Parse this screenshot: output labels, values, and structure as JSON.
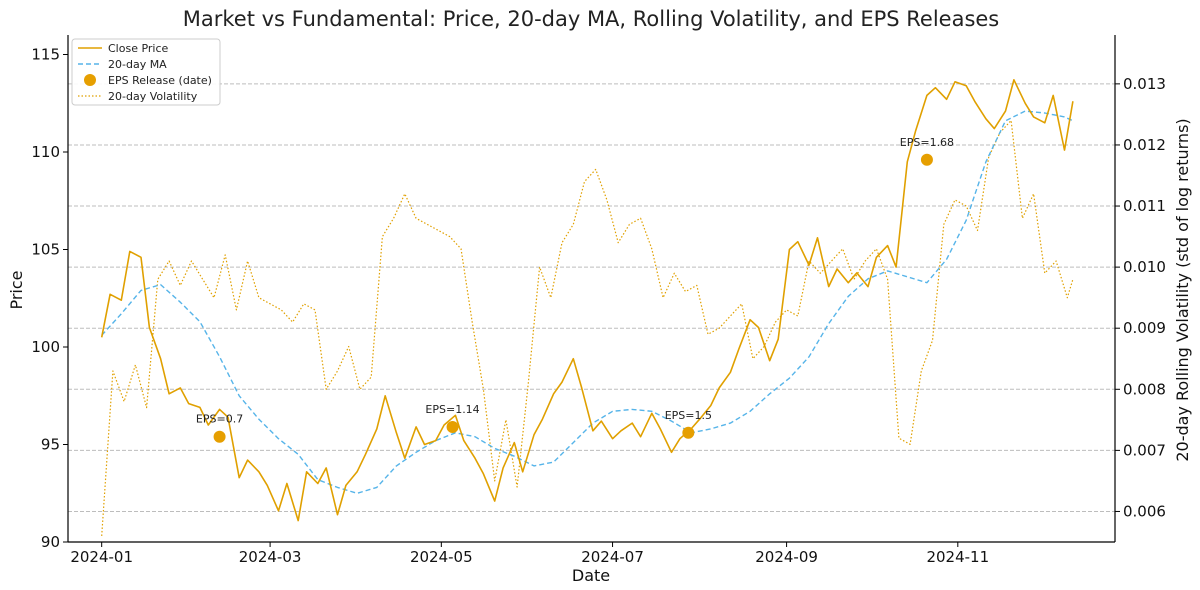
{
  "chart_data": {
    "type": "line",
    "title": "Market vs Fundamental: Price, 20-day MA, Rolling Volatility, and EPS Releases",
    "xlabel": "Date",
    "ylabel": "Price",
    "ylabel_right": "20-day Rolling Volatility (std of log returns)",
    "xlim": [
      "2023-12-20",
      "2024-12-27"
    ],
    "ylim": [
      90,
      116
    ],
    "ylim_right": [
      0.0055,
      0.0138
    ],
    "x_ticks": [
      "2024-01-01",
      "2024-03-01",
      "2024-05-01",
      "2024-07-01",
      "2024-09-01",
      "2024-11-01"
    ],
    "x_tick_labels": [
      "2024-01",
      "2024-03",
      "2024-05",
      "2024-07",
      "2024-09",
      "2024-11"
    ],
    "y_ticks": [
      90,
      95,
      100,
      105,
      110,
      115
    ],
    "y_ticks_right": [
      0.006,
      0.007,
      0.008,
      0.009,
      0.01,
      0.011,
      0.012,
      0.013
    ],
    "grid": "right-axis horizontal dashed",
    "legend_position": "top-left",
    "colors": {
      "price": "#E0A000",
      "ma": "#56B4E9",
      "vol": "#E0A000",
      "eps": "#E69F00"
    },
    "series": [
      {
        "name": "Close Price",
        "axis": "left",
        "style": "solid",
        "x": [
          "2024-01-01",
          "2024-01-04",
          "2024-01-08",
          "2024-01-11",
          "2024-01-15",
          "2024-01-18",
          "2024-01-22",
          "2024-01-25",
          "2024-01-29",
          "2024-02-01",
          "2024-02-05",
          "2024-02-08",
          "2024-02-12",
          "2024-02-15",
          "2024-02-19",
          "2024-02-22",
          "2024-02-26",
          "2024-02-29",
          "2024-03-04",
          "2024-03-07",
          "2024-03-11",
          "2024-03-14",
          "2024-03-18",
          "2024-03-21",
          "2024-03-25",
          "2024-03-28",
          "2024-04-01",
          "2024-04-04",
          "2024-04-08",
          "2024-04-11",
          "2024-04-15",
          "2024-04-18",
          "2024-04-22",
          "2024-04-25",
          "2024-04-29",
          "2024-05-02",
          "2024-05-06",
          "2024-05-09",
          "2024-05-13",
          "2024-05-16",
          "2024-05-20",
          "2024-05-23",
          "2024-05-27",
          "2024-05-30",
          "2024-06-03",
          "2024-06-06",
          "2024-06-10",
          "2024-06-13",
          "2024-06-17",
          "2024-06-20",
          "2024-06-24",
          "2024-06-27",
          "2024-07-01",
          "2024-07-04",
          "2024-07-08",
          "2024-07-11",
          "2024-07-15",
          "2024-07-18",
          "2024-07-22",
          "2024-07-25",
          "2024-07-29",
          "2024-08-01",
          "2024-08-05",
          "2024-08-08",
          "2024-08-12",
          "2024-08-15",
          "2024-08-19",
          "2024-08-22",
          "2024-08-26",
          "2024-08-29",
          "2024-09-02",
          "2024-09-05",
          "2024-09-09",
          "2024-09-12",
          "2024-09-16",
          "2024-09-19",
          "2024-09-23",
          "2024-09-26",
          "2024-09-30",
          "2024-10-03",
          "2024-10-07",
          "2024-10-10",
          "2024-10-14",
          "2024-10-17",
          "2024-10-21",
          "2024-10-24",
          "2024-10-28",
          "2024-10-31",
          "2024-11-04",
          "2024-11-07",
          "2024-11-11",
          "2024-11-14",
          "2024-11-18",
          "2024-11-21",
          "2024-11-25",
          "2024-11-28",
          "2024-12-02",
          "2024-12-05",
          "2024-12-09",
          "2024-12-12"
        ],
        "y": [
          100.5,
          102.7,
          102.4,
          104.9,
          104.6,
          101.0,
          99.4,
          97.6,
          97.9,
          97.1,
          96.9,
          96.0,
          96.8,
          96.4,
          93.3,
          94.2,
          93.6,
          92.9,
          91.6,
          93.0,
          91.1,
          93.6,
          93.0,
          93.8,
          91.4,
          92.9,
          93.6,
          94.5,
          95.8,
          97.5,
          95.6,
          94.3,
          95.9,
          95.0,
          95.2,
          96.0,
          96.5,
          95.2,
          94.3,
          93.5,
          92.1,
          93.8,
          95.1,
          93.6,
          95.5,
          96.3,
          97.6,
          98.2,
          99.4,
          97.9,
          95.7,
          96.2,
          95.3,
          95.7,
          96.1,
          95.4,
          96.6,
          95.8,
          94.6,
          95.3,
          95.8,
          96.3,
          97.0,
          97.9,
          98.7,
          99.9,
          101.4,
          101.0,
          99.3,
          100.4,
          105.0,
          105.4,
          104.2,
          105.6,
          103.1,
          104.0,
          103.3,
          103.8,
          103.1,
          104.6,
          105.2,
          104.1,
          109.5,
          111.1,
          112.9,
          113.3,
          112.7,
          113.6,
          113.4,
          112.6,
          111.7,
          111.2,
          112.1,
          113.7,
          112.5,
          111.8,
          111.5,
          112.9,
          110.1,
          112.6
        ]
      },
      {
        "name": "20-day MA",
        "axis": "left",
        "style": "dashed",
        "x": [
          "2024-01-01",
          "2024-01-08",
          "2024-01-15",
          "2024-01-22",
          "2024-01-29",
          "2024-02-05",
          "2024-02-12",
          "2024-02-19",
          "2024-02-26",
          "2024-03-04",
          "2024-03-11",
          "2024-03-18",
          "2024-03-25",
          "2024-04-01",
          "2024-04-08",
          "2024-04-15",
          "2024-04-22",
          "2024-04-29",
          "2024-05-06",
          "2024-05-13",
          "2024-05-20",
          "2024-05-27",
          "2024-06-03",
          "2024-06-10",
          "2024-06-17",
          "2024-06-24",
          "2024-07-01",
          "2024-07-08",
          "2024-07-15",
          "2024-07-22",
          "2024-07-29",
          "2024-08-05",
          "2024-08-12",
          "2024-08-19",
          "2024-08-26",
          "2024-09-02",
          "2024-09-09",
          "2024-09-16",
          "2024-09-23",
          "2024-09-30",
          "2024-10-07",
          "2024-10-14",
          "2024-10-21",
          "2024-10-28",
          "2024-11-04",
          "2024-11-11",
          "2024-11-18",
          "2024-11-25",
          "2024-12-02",
          "2024-12-09",
          "2024-12-12"
        ],
        "y": [
          100.6,
          101.7,
          102.9,
          103.2,
          102.3,
          101.3,
          99.5,
          97.5,
          96.3,
          95.3,
          94.5,
          93.2,
          92.8,
          92.5,
          92.8,
          93.9,
          94.6,
          95.2,
          95.6,
          95.4,
          94.8,
          94.4,
          93.9,
          94.1,
          95.1,
          96.1,
          96.7,
          96.8,
          96.7,
          96.2,
          95.6,
          95.8,
          96.1,
          96.7,
          97.6,
          98.4,
          99.5,
          101.2,
          102.6,
          103.5,
          103.9,
          103.6,
          103.3,
          104.5,
          106.5,
          109.5,
          111.6,
          112.1,
          112.0,
          111.8,
          111.6
        ]
      },
      {
        "name": "20-day Volatility",
        "axis": "right",
        "style": "dotted",
        "x": [
          "2024-01-01",
          "2024-01-05",
          "2024-01-09",
          "2024-01-13",
          "2024-01-17",
          "2024-01-21",
          "2024-01-25",
          "2024-01-29",
          "2024-02-02",
          "2024-02-06",
          "2024-02-10",
          "2024-02-14",
          "2024-02-18",
          "2024-02-22",
          "2024-02-26",
          "2024-03-01",
          "2024-03-05",
          "2024-03-09",
          "2024-03-13",
          "2024-03-17",
          "2024-03-21",
          "2024-03-25",
          "2024-03-29",
          "2024-04-02",
          "2024-04-06",
          "2024-04-10",
          "2024-04-14",
          "2024-04-18",
          "2024-04-22",
          "2024-04-26",
          "2024-04-30",
          "2024-05-04",
          "2024-05-08",
          "2024-05-12",
          "2024-05-16",
          "2024-05-20",
          "2024-05-24",
          "2024-05-28",
          "2024-06-01",
          "2024-06-05",
          "2024-06-09",
          "2024-06-13",
          "2024-06-17",
          "2024-06-21",
          "2024-06-25",
          "2024-06-29",
          "2024-07-03",
          "2024-07-07",
          "2024-07-11",
          "2024-07-15",
          "2024-07-19",
          "2024-07-23",
          "2024-07-27",
          "2024-07-31",
          "2024-08-04",
          "2024-08-08",
          "2024-08-12",
          "2024-08-16",
          "2024-08-20",
          "2024-08-24",
          "2024-08-28",
          "2024-09-01",
          "2024-09-05",
          "2024-09-09",
          "2024-09-13",
          "2024-09-17",
          "2024-09-21",
          "2024-09-25",
          "2024-09-29",
          "2024-10-03",
          "2024-10-07",
          "2024-10-11",
          "2024-10-15",
          "2024-10-19",
          "2024-10-23",
          "2024-10-27",
          "2024-10-31",
          "2024-11-04",
          "2024-11-08",
          "2024-11-12",
          "2024-11-16",
          "2024-11-20",
          "2024-11-24",
          "2024-11-28",
          "2024-12-02",
          "2024-12-06",
          "2024-12-10",
          "2024-12-12"
        ],
        "y": [
          0.0056,
          0.0083,
          0.0078,
          0.0084,
          0.0077,
          0.0098,
          0.0101,
          0.0097,
          0.0101,
          0.0098,
          0.0095,
          0.0102,
          0.0093,
          0.0101,
          0.0095,
          0.0094,
          0.0093,
          0.0091,
          0.0094,
          0.0093,
          0.008,
          0.0083,
          0.0087,
          0.008,
          0.0082,
          0.0105,
          0.0108,
          0.0112,
          0.0108,
          0.0107,
          0.0106,
          0.0105,
          0.0103,
          0.0091,
          0.008,
          0.0065,
          0.0075,
          0.0064,
          0.0081,
          0.01,
          0.0095,
          0.0104,
          0.0107,
          0.0114,
          0.0116,
          0.0111,
          0.0104,
          0.0107,
          0.0108,
          0.0103,
          0.0095,
          0.0099,
          0.0096,
          0.0097,
          0.0089,
          0.009,
          0.0092,
          0.0094,
          0.0085,
          0.0087,
          0.0091,
          0.0093,
          0.0092,
          0.0101,
          0.0099,
          0.0101,
          0.0103,
          0.0098,
          0.0101,
          0.0103,
          0.0098,
          0.0072,
          0.0071,
          0.0083,
          0.0088,
          0.0107,
          0.0111,
          0.011,
          0.0106,
          0.0118,
          0.0122,
          0.0124,
          0.0108,
          0.0112,
          0.0099,
          0.0101,
          0.0095,
          0.0098
        ]
      }
    ],
    "eps_releases": {
      "name": "EPS Release (date)",
      "points": [
        {
          "x": "2024-02-12",
          "y": 95.4,
          "label": "EPS=0.7"
        },
        {
          "x": "2024-05-05",
          "y": 95.9,
          "label": "EPS=1.14"
        },
        {
          "x": "2024-07-28",
          "y": 95.6,
          "label": "EPS=1.5"
        },
        {
          "x": "2024-10-21",
          "y": 109.6,
          "label": "EPS=1.68"
        }
      ]
    },
    "legend": [
      {
        "label": "Close Price",
        "style": "solid-line"
      },
      {
        "label": "20-day MA",
        "style": "dashed-line"
      },
      {
        "label": "EPS Release (date)",
        "style": "marker"
      },
      {
        "label": "20-day Volatility",
        "style": "dotted-line"
      }
    ]
  }
}
